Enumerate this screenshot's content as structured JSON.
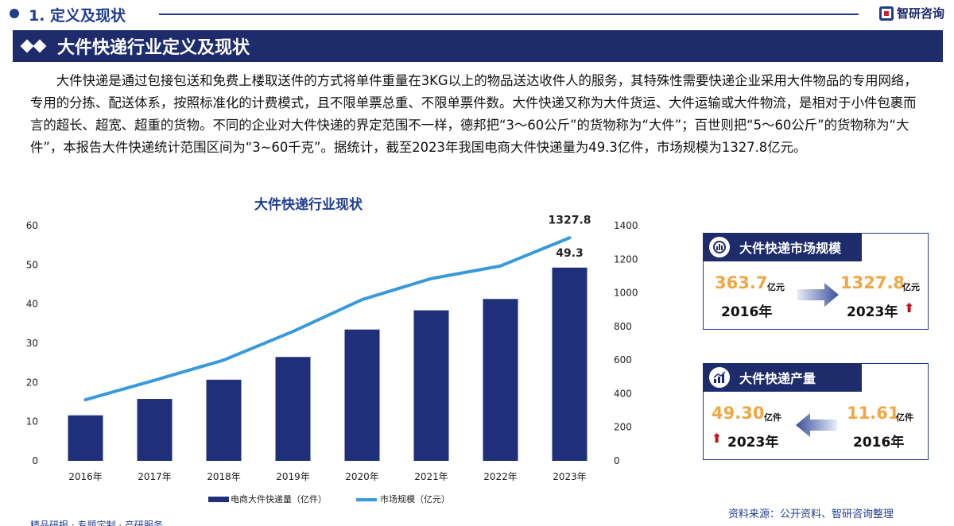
{
  "header": {
    "section_title": "1. 定义及现状",
    "brand": "智研咨询"
  },
  "banner": {
    "title": "大件快递行业定义及现状"
  },
  "intro": "大件快递是通过包接包送和免费上楼取送件的方式将单件重量在3KG以上的物品送达收件人的服务，其特殊性需要快递企业采用大件物品的专用网络，专用的分拣、配送体系，按照标准化的计费模式，且不限单票总重、不限单票件数。大件快递又称为大件货运、大件运输或大件物流，是相对于小件包裹而言的超长、超宽、超重的货物。不同的企业对大件快递的界定范围不一样，德邦把“3～60公斤”的货物称为“大件”；百世则把“5～60公斤”的货物称为“大件”，本报告大件快递统计范围区间为“3~60千克”。据统计，截至2023年我国电商大件快递量为49.3亿件，市场规模为1327.8亿元。",
  "chart_data": {
    "type": "bar+line",
    "title": "大件快递行业现状",
    "categories": [
      "2016年",
      "2017年",
      "2018年",
      "2019年",
      "2020年",
      "2021年",
      "2022年",
      "2023年"
    ],
    "series": [
      {
        "name": "电商大件快递量（亿件）",
        "type": "bar",
        "axis": "left",
        "values": [
          11.61,
          15.8,
          20.7,
          26.5,
          33.5,
          38.4,
          41.3,
          49.3
        ],
        "color": "#1f2f7a"
      },
      {
        "name": "市场规模（亿元）",
        "type": "line",
        "axis": "right",
        "values": [
          363.7,
          480,
          600,
          770,
          960,
          1085,
          1160,
          1327.8
        ],
        "color": "#3a9ad9"
      }
    ],
    "left_axis": {
      "min": 0,
      "max": 60,
      "ticks": [
        "0",
        "10",
        "20",
        "30",
        "40",
        "50",
        "60"
      ]
    },
    "right_axis": {
      "min": 0,
      "max": 1400,
      "ticks": [
        "0",
        "200",
        "400",
        "600",
        "800",
        "1000",
        "1200",
        "1400"
      ]
    },
    "labels": {
      "bar_last": "49.3",
      "line_last": "1327.8"
    },
    "legend": [
      "电商大件快递量（亿件）",
      "市场规模（亿元）"
    ],
    "legend_position": "bottom"
  },
  "cards": {
    "market": {
      "title": "大件快递市场规模",
      "from_value": "363.7",
      "from_unit": "亿元",
      "from_year": "2016年",
      "to_value": "1327.8",
      "to_unit": "亿元",
      "to_year": "2023年"
    },
    "volume": {
      "title": "大件快递产量",
      "new_value": "49.30",
      "new_unit": "亿件",
      "new_year": "2023年",
      "old_value": "11.61",
      "old_unit": "亿件",
      "old_year": "2016年"
    }
  },
  "footer": {
    "source": "资料来源：公开资料、智研咨询整理",
    "bottom_text": "精品研报 · 专题定制 · 产研服务"
  },
  "colors": {
    "navy": "#1e2c6b",
    "bar": "#1f2f7a",
    "line": "#3a9ad9",
    "accent": "#f0a742",
    "red": "#c0141b"
  }
}
